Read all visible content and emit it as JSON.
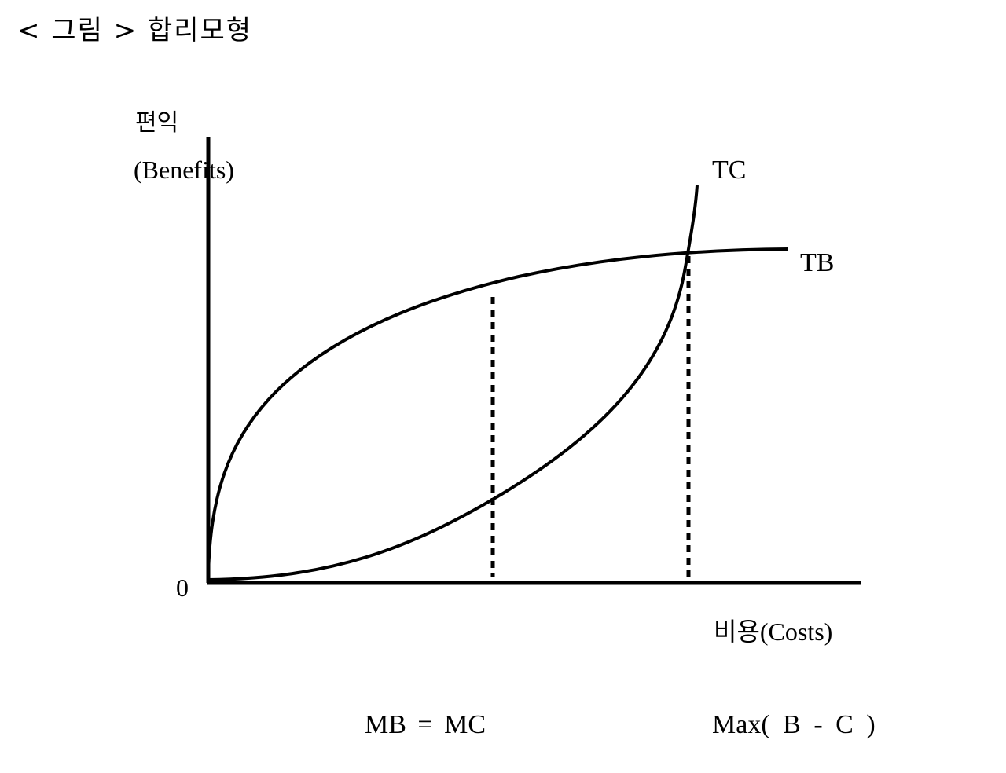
{
  "title": "< 그림 > 합리모형",
  "axes": {
    "y_label_ko": "편익",
    "y_label_en": "(Benefits)",
    "x_label": "비용(Costs)",
    "origin": "0"
  },
  "curves": {
    "tc_label": "TC",
    "tb_label": "TB"
  },
  "conditions": {
    "left": "MB = MC",
    "right": "Max( B - C )"
  }
}
